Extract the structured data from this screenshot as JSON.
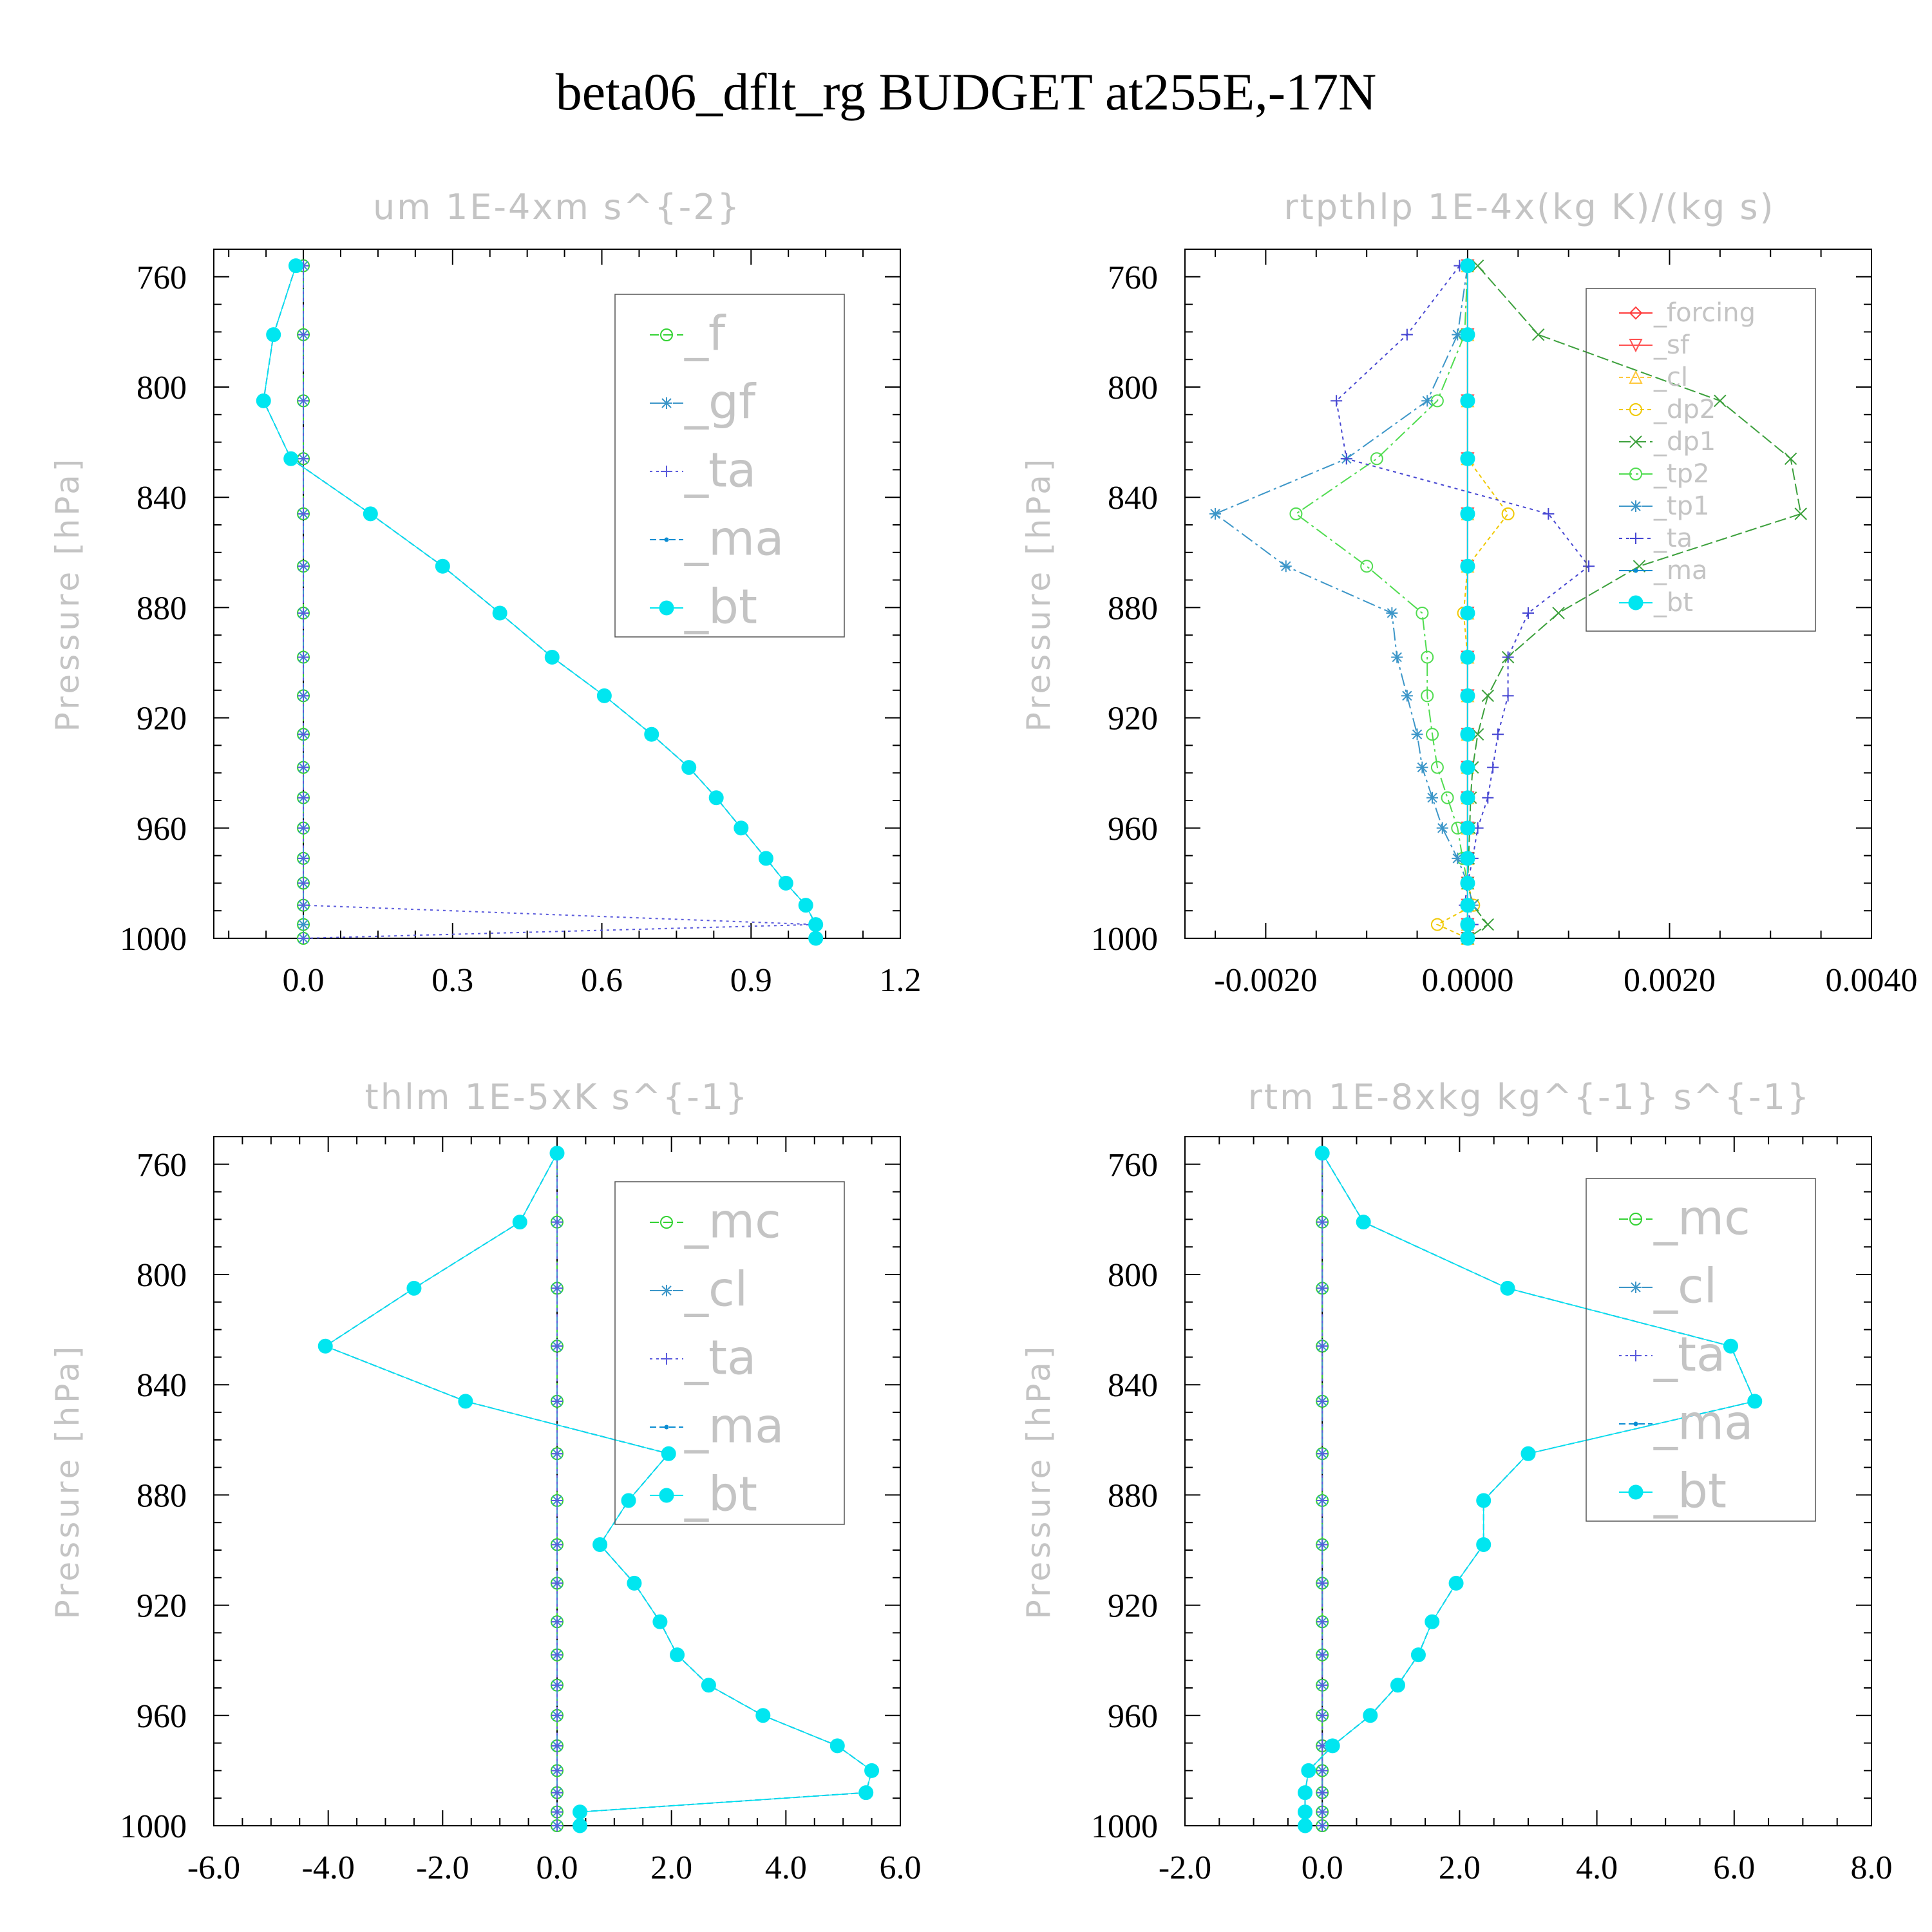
{
  "figure": {
    "title": "beta06_dflt_rg  BUDGET at255E,-17N"
  },
  "pressure_levels": [
    756,
    781,
    805,
    826,
    846,
    865,
    882,
    898,
    912,
    926,
    938,
    949,
    960,
    971,
    980,
    988,
    995,
    1000
  ],
  "chart_data": [
    {
      "id": "um",
      "type": "line",
      "title": "um   1E-4xm s^{-2}",
      "ylabel": "Pressure [hPa]",
      "xlim": [
        -0.18,
        1.2
      ],
      "ylim": [
        750,
        1000
      ],
      "xticks": [
        0.0,
        0.3,
        0.6,
        0.9,
        1.2
      ],
      "xtick_labels": [
        "0.0",
        "0.3",
        "0.6",
        "0.9",
        "1.2"
      ],
      "yticks": [
        760,
        800,
        840,
        880,
        920,
        960,
        1000
      ],
      "ytick_labels": [
        "760",
        "800",
        "840",
        "880",
        "920",
        "960",
        "1000"
      ],
      "legend_font": 74,
      "series": [
        {
          "name": "_f",
          "color": "#32d232",
          "marker": "circle",
          "dash": "14,7",
          "values": [
            0,
            0,
            0,
            0,
            0,
            0,
            0,
            0,
            0,
            0,
            0,
            0,
            0,
            0,
            0,
            0,
            0,
            0
          ]
        },
        {
          "name": "_gf",
          "color": "#3c96c8",
          "marker": "star",
          "dash": "20,6,4,6",
          "values": [
            0,
            0,
            0,
            0,
            0,
            0,
            0,
            0,
            0,
            0,
            0,
            0,
            0,
            0,
            0,
            0,
            0,
            0
          ]
        },
        {
          "name": "_ta",
          "color": "#5a5adc",
          "marker": "plus",
          "dash": "4,6",
          "values": [
            0,
            0,
            0,
            0,
            0,
            0,
            0,
            0,
            0,
            0,
            0,
            0,
            0,
            0,
            0,
            0,
            1.03,
            0
          ]
        },
        {
          "name": "_ma",
          "color": "#0a8cd2",
          "marker": "dot",
          "dash": "10,5",
          "values": [
            -0.015,
            -0.06,
            -0.08,
            -0.025,
            0.135,
            0.28,
            0.395,
            0.5,
            0.605,
            0.7,
            0.775,
            0.83,
            0.88,
            0.93,
            0.97,
            1.01,
            1.03,
            1.03
          ]
        },
        {
          "name": "_bt",
          "color": "#00e6f0",
          "marker": "bigdot",
          "dash": "",
          "values": [
            -0.015,
            -0.06,
            -0.08,
            -0.025,
            0.135,
            0.28,
            0.395,
            0.5,
            0.605,
            0.7,
            0.775,
            0.83,
            0.88,
            0.93,
            0.97,
            1.01,
            1.03,
            1.03
          ]
        }
      ]
    },
    {
      "id": "rtpthlp",
      "type": "line",
      "title": "rtpthlp   1E-4x(kg K)/(kg s)",
      "ylabel": "Pressure [hPa]",
      "xlim": [
        -0.0028,
        0.004
      ],
      "ylim": [
        750,
        1000
      ],
      "xticks": [
        -0.002,
        0.0,
        0.002,
        0.004
      ],
      "xtick_labels": [
        "-0.0020",
        "0.0000",
        "0.0020",
        "0.0040"
      ],
      "yticks": [
        760,
        800,
        840,
        880,
        920,
        960,
        1000
      ],
      "ytick_labels": [
        "760",
        "800",
        "840",
        "880",
        "920",
        "960",
        "1000"
      ],
      "legend_font": 40,
      "series": [
        {
          "name": "_forcing",
          "color": "#ff3c3c",
          "marker": "diamond",
          "dash": "",
          "values": [
            0,
            0,
            0,
            0,
            0,
            0,
            0,
            0,
            0,
            0,
            0,
            0,
            0,
            0,
            0,
            0,
            0,
            0
          ]
        },
        {
          "name": "_sf",
          "color": "#ff5050",
          "marker": "triangle-down",
          "dash": "",
          "values": [
            0,
            0,
            0,
            0,
            0,
            0,
            0,
            0,
            0,
            0,
            0,
            0,
            0,
            0,
            0,
            0,
            0,
            0
          ]
        },
        {
          "name": "_cl",
          "color": "#ffc83c",
          "marker": "triangle",
          "dash": "6,5",
          "values": [
            0,
            0,
            0,
            0,
            0,
            0,
            0,
            0,
            0,
            0,
            0,
            0,
            0,
            0,
            0,
            0,
            0,
            0
          ]
        },
        {
          "name": "_dp2",
          "color": "#f0c800",
          "marker": "circle",
          "dash": "6,5",
          "values": [
            0,
            0,
            0,
            0,
            0.0004,
            0,
            -4e-05,
            0,
            0,
            0,
            0,
            0,
            0,
            0,
            0,
            6e-05,
            -0.0003,
            0
          ]
        },
        {
          "name": "_dp1",
          "color": "#3ca03c",
          "marker": "cross",
          "dash": "18,6",
          "values": [
            0.0001,
            0.0007,
            0.0025,
            0.0032,
            0.0033,
            0.0017,
            0.0009,
            0.0004,
            0.0002,
            0.0001,
            5e-05,
            3e-05,
            2e-05,
            1e-05,
            0,
            5e-05,
            0.0002,
            0
          ]
        },
        {
          "name": "_tp2",
          "color": "#50dc50",
          "marker": "circle",
          "dash": "20,6,4,6",
          "values": [
            0,
            -3e-05,
            -0.0003,
            -0.0009,
            -0.0017,
            -0.001,
            -0.00045,
            -0.0004,
            -0.0004,
            -0.00035,
            -0.0003,
            -0.0002,
            -0.0001,
            -5e-05,
            0,
            0,
            0,
            0
          ]
        },
        {
          "name": "_tp1",
          "color": "#3c96c8",
          "marker": "star",
          "dash": "20,6,4,6",
          "values": [
            0,
            -0.0001,
            -0.0004,
            -0.0012,
            -0.0025,
            -0.0018,
            -0.00075,
            -0.0007,
            -0.0006,
            -0.0005,
            -0.00045,
            -0.00035,
            -0.00025,
            -0.0001,
            0,
            5e-05,
            0,
            0
          ]
        },
        {
          "name": "_ta",
          "color": "#4646d2",
          "marker": "plus",
          "dash": "5,6",
          "values": [
            -8e-05,
            -0.0006,
            -0.0013,
            -0.0012,
            0.0008,
            0.0012,
            0.0006,
            0.0004,
            0.0004,
            0.0003,
            0.00025,
            0.0002,
            0.0001,
            5e-05,
            0,
            -3e-05,
            5e-05,
            0
          ]
        },
        {
          "name": "_ma",
          "color": "#0a8cd2",
          "marker": "dot",
          "dash": "",
          "values": [
            0,
            0,
            0,
            0,
            0,
            0,
            0,
            0,
            0,
            0,
            0,
            0,
            0,
            0,
            0,
            0,
            0,
            0
          ]
        },
        {
          "name": "_bt",
          "color": "#00e6f0",
          "marker": "bigdot",
          "dash": "",
          "values": [
            0,
            0,
            0,
            0,
            0,
            0,
            0,
            0,
            0,
            0,
            0,
            0,
            0,
            0,
            0,
            0,
            0,
            0
          ]
        }
      ]
    },
    {
      "id": "thlm",
      "type": "line",
      "title": "thlm   1E-5xK s^{-1}",
      "ylabel": "Pressure [hPa]",
      "xlim": [
        -6.0,
        6.0
      ],
      "ylim": [
        750,
        1000
      ],
      "xticks": [
        -6.0,
        -4.0,
        -2.0,
        0.0,
        2.0,
        4.0,
        6.0
      ],
      "xtick_labels": [
        "-6.0",
        "-4.0",
        "-2.0",
        "0.0",
        "2.0",
        "4.0",
        "6.0"
      ],
      "yticks": [
        760,
        800,
        840,
        880,
        920,
        960,
        1000
      ],
      "ytick_labels": [
        "760",
        "800",
        "840",
        "880",
        "920",
        "960",
        "1000"
      ],
      "legend_font": 74,
      "series": [
        {
          "name": "_mc",
          "color": "#32d232",
          "marker": "circle",
          "dash": "14,7",
          "values": [
            0,
            0,
            0,
            0,
            0,
            0,
            0,
            0,
            0,
            0,
            0,
            0,
            0,
            0,
            0,
            0,
            0,
            0
          ]
        },
        {
          "name": "_cl",
          "color": "#3c96c8",
          "marker": "star",
          "dash": "20,6,4,6",
          "values": [
            0,
            0,
            0,
            0,
            0,
            0,
            0,
            0,
            0,
            0,
            0,
            0,
            0,
            0,
            0,
            0,
            0,
            0
          ]
        },
        {
          "name": "_ta",
          "color": "#5a5adc",
          "marker": "plus",
          "dash": "4,6",
          "values": [
            0,
            0,
            0,
            0,
            0,
            0,
            0,
            0,
            0,
            0,
            0,
            0,
            0,
            0,
            0,
            0,
            0,
            0
          ]
        },
        {
          "name": "_ma",
          "color": "#0a8cd2",
          "marker": "dot",
          "dash": "10,5",
          "values": [
            0.0,
            -0.65,
            -2.5,
            -4.05,
            -1.6,
            1.95,
            1.25,
            0.75,
            1.35,
            1.8,
            2.1,
            2.65,
            3.6,
            4.9,
            5.5,
            5.4,
            0.4,
            0.4
          ]
        },
        {
          "name": "_bt",
          "color": "#00e6f0",
          "marker": "bigdot",
          "dash": "",
          "values": [
            0.0,
            -0.65,
            -2.5,
            -4.05,
            -1.6,
            1.95,
            1.25,
            0.75,
            1.35,
            1.8,
            2.1,
            2.65,
            3.6,
            4.9,
            5.5,
            5.4,
            0.4,
            0.4
          ]
        }
      ]
    },
    {
      "id": "rtm",
      "type": "line",
      "title": "rtm   1E-8xkg kg^{-1} s^{-1}",
      "ylabel": "Pressure [hPa]",
      "xlim": [
        -2.0,
        8.0
      ],
      "ylim": [
        750,
        1000
      ],
      "xticks": [
        -2.0,
        0.0,
        2.0,
        4.0,
        6.0,
        8.0
      ],
      "xtick_labels": [
        "-2.0",
        "0.0",
        "2.0",
        "4.0",
        "6.0",
        "8.0"
      ],
      "yticks": [
        760,
        800,
        840,
        880,
        920,
        960,
        1000
      ],
      "ytick_labels": [
        "760",
        "800",
        "840",
        "880",
        "920",
        "960",
        "1000"
      ],
      "legend_font": 74,
      "series": [
        {
          "name": "_mc",
          "color": "#32d232",
          "marker": "circle",
          "dash": "14,7",
          "values": [
            0,
            0,
            0,
            0,
            0,
            0,
            0,
            0,
            0,
            0,
            0,
            0,
            0,
            0,
            0,
            0,
            0,
            0
          ]
        },
        {
          "name": "_cl",
          "color": "#3c96c8",
          "marker": "star",
          "dash": "20,6,4,6",
          "values": [
            0,
            0,
            0,
            0,
            0,
            0,
            0,
            0,
            0,
            0,
            0,
            0,
            0,
            0,
            0,
            0,
            0,
            0
          ]
        },
        {
          "name": "_ta",
          "color": "#5a5adc",
          "marker": "plus",
          "dash": "4,6",
          "values": [
            0,
            0,
            0,
            0,
            0,
            0,
            0,
            0,
            0,
            0,
            0,
            0,
            0,
            0,
            0,
            0,
            0,
            0
          ]
        },
        {
          "name": "_ma",
          "color": "#0a8cd2",
          "marker": "dot",
          "dash": "10,5",
          "values": [
            0.0,
            0.6,
            2.7,
            5.95,
            6.3,
            3.0,
            2.35,
            2.35,
            1.95,
            1.6,
            1.4,
            1.1,
            0.7,
            0.15,
            -0.2,
            -0.25,
            -0.25,
            -0.25
          ]
        },
        {
          "name": "_bt",
          "color": "#00e6f0",
          "marker": "bigdot",
          "dash": "",
          "values": [
            0.0,
            0.6,
            2.7,
            5.95,
            6.3,
            3.0,
            2.35,
            2.35,
            1.95,
            1.6,
            1.4,
            1.1,
            0.7,
            0.15,
            -0.2,
            -0.25,
            -0.25,
            -0.25
          ]
        }
      ]
    }
  ]
}
